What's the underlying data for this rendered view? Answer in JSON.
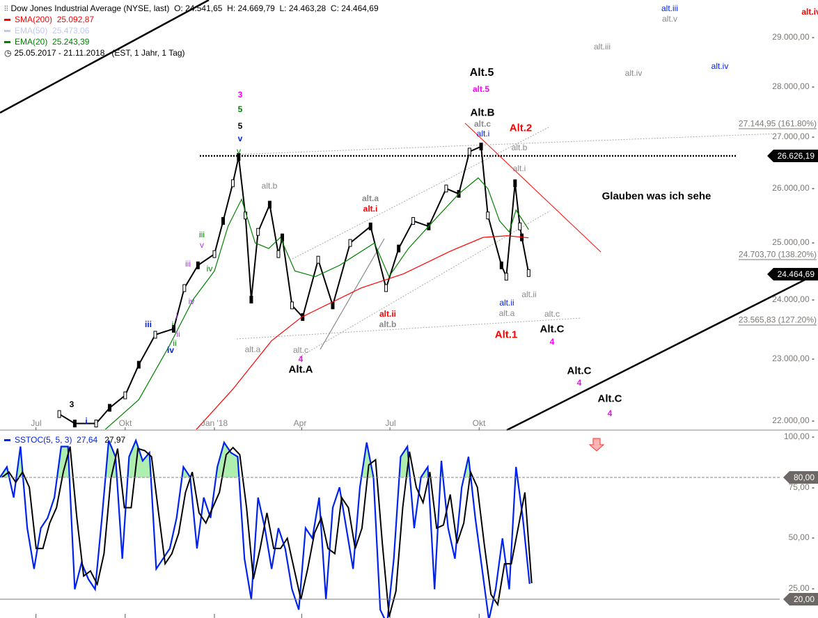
{
  "header": {
    "instrument": "Dow Jones Industrial Average (NYSE, last)",
    "ohlc": "O: 24.541,65  H: 24.669,79  L: 24.463,28  C: 24.464,69",
    "indicators": [
      {
        "name": "SMA(200)",
        "value": "25.092,87",
        "color": "#ff0000"
      },
      {
        "name": "EMA(50)",
        "value": "25.473,06",
        "color": "#c0c8f0"
      },
      {
        "name": "EMA(20)",
        "value": "25.243,39",
        "color": "#008000"
      }
    ],
    "range": "25.05.2017 - 21.11.2018   (EST, 1 Jahr, 1 Tag)"
  },
  "price_axis": {
    "ticks": [
      "29.000,00",
      "28.000,00",
      "27.000,00",
      "26.000,00",
      "25.000,00",
      "24.000,00",
      "23.000,00",
      "22.000,00"
    ],
    "tick_values": [
      29000,
      28000,
      27000,
      26000,
      25000,
      24000,
      23000,
      22000
    ],
    "scale": "log",
    "markers": [
      {
        "label": "26.626,19",
        "value": 26626.19,
        "color": "#000000"
      },
      {
        "label": "24.464,69",
        "value": 24464.69,
        "color": "#000000"
      }
    ],
    "fib_levels": [
      {
        "label": "27.144,95 (161.80%)",
        "value": 27144.95
      },
      {
        "label": "24.703,70 (138.20%)",
        "value": 24703.7
      },
      {
        "label": "23.565,83 (127.20%)",
        "value": 23565.83
      }
    ]
  },
  "date_axis": {
    "ticks": [
      {
        "label": "Jul",
        "date": "2017-07-01"
      },
      {
        "label": "Okt",
        "date": "2017-10-01"
      },
      {
        "label": "Jan '18",
        "date": "2018-01-01"
      },
      {
        "label": "Apr",
        "date": "2018-04-01"
      },
      {
        "label": "Jul",
        "date": "2018-07-01"
      },
      {
        "label": "Okt",
        "date": "2018-10-01"
      }
    ]
  },
  "annotations": [
    {
      "text": "3",
      "color": "#ff00ff"
    },
    {
      "text": "5",
      "color": "#008000"
    },
    {
      "text": "5",
      "color": "#000000"
    },
    {
      "text": "v",
      "color": "#0022ee"
    },
    {
      "text": "v",
      "color": "#008000"
    },
    {
      "text": "alt.b",
      "color": "#8a8a8a"
    },
    {
      "text": "iii",
      "color": "#008000"
    },
    {
      "text": "v",
      "color": "#aa33ee"
    },
    {
      "text": "iv",
      "color": "#008000"
    },
    {
      "text": "iii",
      "color": "#aa33ee"
    },
    {
      "text": "iv",
      "color": "#aa33ee"
    },
    {
      "text": "i",
      "color": "#aa33ee"
    },
    {
      "text": "i",
      "color": "#008000"
    },
    {
      "text": "ii",
      "color": "#aa33ee"
    },
    {
      "text": "ii",
      "color": "#008000"
    },
    {
      "text": "iv",
      "color": "#0022ee"
    },
    {
      "text": "iii",
      "color": "#0022ee"
    },
    {
      "text": "3",
      "color": "#000000"
    },
    {
      "text": "i",
      "color": "#0022ee"
    },
    {
      "text": "alt.a",
      "color": "#8a8a8a"
    },
    {
      "text": "alt.c",
      "color": "#8a8a8a"
    },
    {
      "text": "4",
      "color": "#ff00ff"
    },
    {
      "text": "Alt.A",
      "color": "#000000"
    },
    {
      "text": "alt.a",
      "color": "#8a8a8a"
    },
    {
      "text": "alt.i",
      "color": "#ff0000"
    },
    {
      "text": "alt.ii",
      "color": "#ff0000"
    },
    {
      "text": "alt.b",
      "color": "#8a8a8a"
    },
    {
      "text": "Alt.5",
      "color": "#000000"
    },
    {
      "text": "alt.5",
      "color": "#ff00ff"
    },
    {
      "text": "Alt.B",
      "color": "#000000"
    },
    {
      "text": "alt.c",
      "color": "#8a8a8a"
    },
    {
      "text": "alt.i",
      "color": "#0022ee"
    },
    {
      "text": "Alt.2",
      "color": "#ff0000"
    },
    {
      "text": "alt.b",
      "color": "#8a8a8a"
    },
    {
      "text": "alt.i",
      "color": "#8a8a8a"
    },
    {
      "text": "alt.ii",
      "color": "#0022ee"
    },
    {
      "text": "alt.a",
      "color": "#8a8a8a"
    },
    {
      "text": "alt.ii",
      "color": "#8a8a8a"
    },
    {
      "text": "alt.c",
      "color": "#8a8a8a"
    },
    {
      "text": "Alt.1",
      "color": "#ff0000"
    },
    {
      "text": "Alt.C",
      "color": "#000000"
    },
    {
      "text": "4",
      "color": "#ff00ff"
    },
    {
      "text": "Alt.C",
      "color": "#000000"
    },
    {
      "text": "4",
      "color": "#ff00ff"
    },
    {
      "text": "Alt.C",
      "color": "#000000"
    },
    {
      "text": "4",
      "color": "#ff00ff"
    },
    {
      "text": "Glauben was ich sehe",
      "color": "#000000"
    },
    {
      "text": "alt.iii",
      "color": "#0022ee"
    },
    {
      "text": "alt.v",
      "color": "#8a8a8a"
    },
    {
      "text": "alt.iii",
      "color": "#8a8a8a"
    },
    {
      "text": "alt.iv",
      "color": "#8a8a8a"
    },
    {
      "text": "alt.iv",
      "color": "#0022ee"
    },
    {
      "text": "alt.iv",
      "color": "#ff0000"
    }
  ],
  "oscillator": {
    "name": "SSTOC(5, 5, 3)",
    "k_value": "27,64",
    "d_value": "27,97",
    "k_color": "#0022ee",
    "d_color": "#000000",
    "ticks": [
      "100,00",
      "75,00",
      "50,00",
      "25,00"
    ],
    "tick_values": [
      100,
      75,
      50,
      25
    ],
    "levels": [
      {
        "label": "80,00",
        "value": 80
      },
      {
        "label": "20,00",
        "value": 20
      }
    ]
  },
  "chart_data": [
    {
      "type": "line",
      "title": "Dow Jones Industrial Average (NYSE, last)",
      "ylim": [
        22000,
        29500
      ],
      "yscale": "log",
      "series": [
        {
          "name": "Dow Jones Industrial Average",
          "color": "#000000",
          "points": [
            [
              "2017-07-25",
              22100
            ],
            [
              "2017-08-10",
              21950
            ],
            [
              "2017-09-01",
              21950
            ],
            [
              "2017-09-15",
              22200
            ],
            [
              "2017-10-01",
              22400
            ],
            [
              "2017-10-15",
              22900
            ],
            [
              "2017-11-01",
              23400
            ],
            [
              "2017-11-20",
              23500
            ],
            [
              "2017-12-01",
              24200
            ],
            [
              "2017-12-15",
              24600
            ],
            [
              "2018-01-01",
              24800
            ],
            [
              "2018-01-10",
              25400
            ],
            [
              "2018-01-20",
              26100
            ],
            [
              "2018-01-26",
              26600
            ],
            [
              "2018-02-02",
              25500
            ],
            [
              "2018-02-08",
              24000
            ],
            [
              "2018-02-15",
              25200
            ],
            [
              "2018-02-27",
              25700
            ],
            [
              "2018-03-08",
              24800
            ],
            [
              "2018-03-12",
              25100
            ],
            [
              "2018-03-22",
              23900
            ],
            [
              "2018-04-02",
              23700
            ],
            [
              "2018-04-18",
              24700
            ],
            [
              "2018-05-03",
              23900
            ],
            [
              "2018-05-21",
              25000
            ],
            [
              "2018-06-11",
              25300
            ],
            [
              "2018-06-27",
              24200
            ],
            [
              "2018-07-10",
              24900
            ],
            [
              "2018-07-25",
              25400
            ],
            [
              "2018-08-10",
              25300
            ],
            [
              "2018-08-28",
              26000
            ],
            [
              "2018-09-10",
              25900
            ],
            [
              "2018-09-21",
              26700
            ],
            [
              "2018-10-03",
              26800
            ],
            [
              "2018-10-10",
              25500
            ],
            [
              "2018-10-24",
              24600
            ],
            [
              "2018-10-29",
              24400
            ],
            [
              "2018-11-07",
              26100
            ],
            [
              "2018-11-12",
              25300
            ],
            [
              "2018-11-14",
              25100
            ],
            [
              "2018-11-21",
              24464.69
            ]
          ]
        },
        {
          "name": "SMA(200)",
          "color": "#ff0000",
          "points": [
            [
              "2017-12-10",
              21800
            ],
            [
              "2018-01-20",
              22500
            ],
            [
              "2018-03-01",
              23300
            ],
            [
              "2018-04-01",
              23700
            ],
            [
              "2018-06-01",
              24200
            ],
            [
              "2018-07-15",
              24450
            ],
            [
              "2018-09-01",
              24850
            ],
            [
              "2018-10-05",
              25100
            ],
            [
              "2018-10-30",
              25130
            ],
            [
              "2018-11-21",
              25092.87
            ]
          ]
        },
        {
          "name": "EMA(20)",
          "color": "#008000",
          "points": [
            [
              "2017-09-10",
              21850
            ],
            [
              "2017-10-15",
              22330
            ],
            [
              "2017-11-15",
              23200
            ],
            [
              "2017-12-10",
              24000
            ],
            [
              "2018-01-01",
              24500
            ],
            [
              "2018-01-15",
              25300
            ],
            [
              "2018-01-29",
              25800
            ],
            [
              "2018-02-12",
              25000
            ],
            [
              "2018-02-26",
              24900
            ],
            [
              "2018-03-10",
              25100
            ],
            [
              "2018-03-25",
              24500
            ],
            [
              "2018-04-15",
              24400
            ],
            [
              "2018-05-10",
              24600
            ],
            [
              "2018-06-15",
              25000
            ],
            [
              "2018-06-30",
              24400
            ],
            [
              "2018-07-20",
              24900
            ],
            [
              "2018-08-15",
              25400
            ],
            [
              "2018-09-10",
              25900
            ],
            [
              "2018-09-30",
              26200
            ],
            [
              "2018-10-10",
              26000
            ],
            [
              "2018-10-22",
              25400
            ],
            [
              "2018-11-01",
              25200
            ],
            [
              "2018-11-08",
              25600
            ],
            [
              "2018-11-21",
              25243.39
            ]
          ]
        }
      ]
    },
    {
      "type": "line",
      "title": "SSTOC(5, 5, 3)",
      "ylim": [
        0,
        100
      ],
      "start_date": "2017-05-25",
      "interval": "1 week",
      "series": [
        {
          "name": "%K",
          "values": [
            80,
            85,
            70,
            95,
            55,
            35,
            55,
            60,
            70,
            95,
            95,
            25,
            38,
            30,
            25,
            60,
            98,
            90,
            40,
            90,
            98,
            88,
            92,
            35,
            40,
            45,
            60,
            85,
            80,
            45,
            70,
            60,
            85,
            97,
            92,
            90,
            40,
            20,
            70,
            55,
            35,
            55,
            45,
            25,
            15,
            55,
            50,
            70,
            20,
            65,
            75,
            55,
            35,
            75,
            97,
            80,
            15,
            8,
            40,
            90,
            95,
            55,
            80,
            85,
            25,
            88,
            55,
            40,
            75,
            90,
            60,
            35,
            10,
            25,
            50,
            25,
            85,
            60,
            27.64
          ]
        }
      ]
    }
  ]
}
